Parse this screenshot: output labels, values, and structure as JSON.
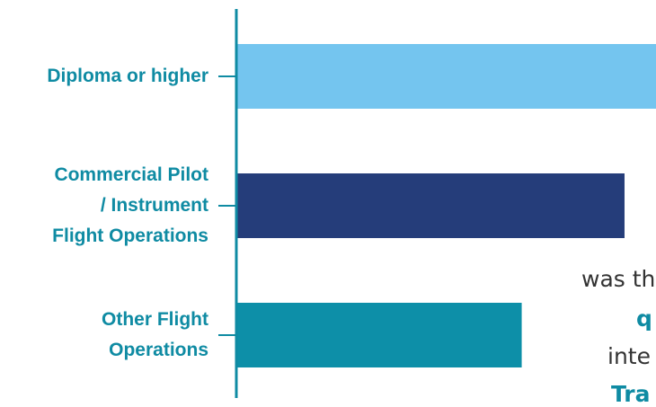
{
  "colors": {
    "axis": "#0f8ba3",
    "label": "#0f8ba3",
    "bars": [
      "#74c5ef",
      "#253d7a",
      "#0d8fa8"
    ]
  },
  "chart_data": {
    "type": "bar",
    "orientation": "horizontal",
    "categories": [
      "Diploma or higher",
      "Commercial Pilot / Instrument Flight Operations",
      "Other Flight Operations"
    ],
    "category_label_lines": [
      [
        "Diploma or higher"
      ],
      [
        "Commercial Pilot",
        "/ Instrument",
        "Flight Operations"
      ],
      [
        "Other Flight",
        "Operations"
      ]
    ],
    "values": [
      1.0,
      0.925,
      0.68
    ],
    "value_scale": "fraction of the longest bar (no value axis shown)",
    "grid": false,
    "legend": "none"
  },
  "overlay_text": {
    "line1": "was th",
    "line2": "q",
    "line3": "inte",
    "line4": "Tra"
  }
}
